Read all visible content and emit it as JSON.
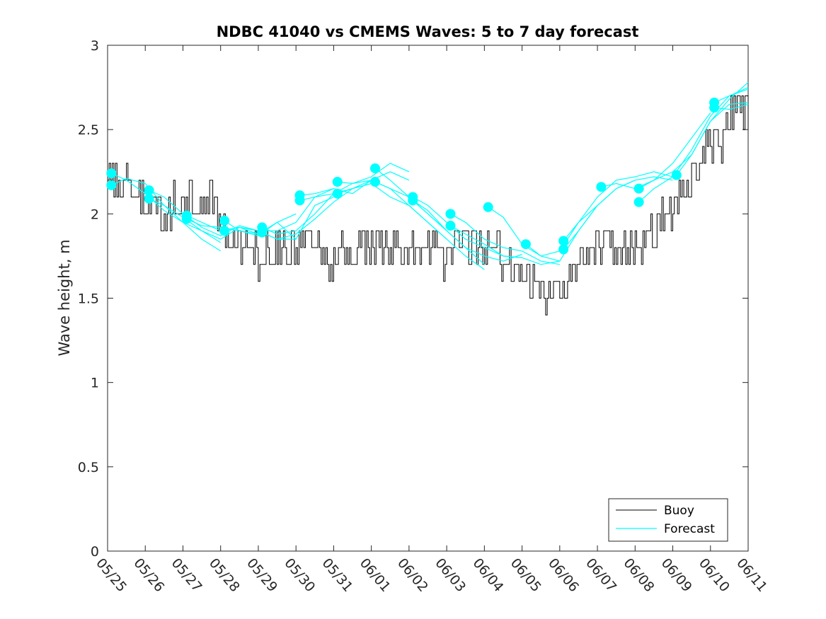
{
  "chart_data": {
    "type": "line",
    "title": "NDBC 41040 vs CMEMS Waves: 5 to 7 day forecast",
    "xlabel": "",
    "ylabel": "Wave height, m",
    "ylim": [
      0,
      3
    ],
    "yticks": [
      "0",
      "0.5",
      "1",
      "1.5",
      "2",
      "2.5",
      "3"
    ],
    "xlim": [
      "05/25",
      "06/11"
    ],
    "xticks": [
      "05/25",
      "05/26",
      "05/27",
      "05/28",
      "05/29",
      "05/30",
      "05/31",
      "06/01",
      "06/02",
      "06/03",
      "06/04",
      "06/05",
      "06/06",
      "06/07",
      "06/08",
      "06/09",
      "06/10",
      "06/11"
    ],
    "grid": false,
    "legend_position": "bottom-right",
    "colors": {
      "buoy": "#000000",
      "forecast": "#00FFFF"
    },
    "series": [
      {
        "name": "Buoy",
        "style": "line",
        "x_days": [
          0,
          0.25,
          0.5,
          0.75,
          1,
          1.25,
          1.5,
          1.75,
          2,
          2.25,
          2.5,
          2.75,
          3,
          3.25,
          3.5,
          3.75,
          4,
          4.25,
          4.5,
          4.75,
          5,
          5.25,
          5.5,
          5.75,
          6,
          6.25,
          6.5,
          6.75,
          7,
          7.25,
          7.5,
          7.75,
          8,
          8.25,
          8.5,
          8.75,
          9,
          9.25,
          9.5,
          9.75,
          10,
          10.25,
          10.5,
          10.75,
          11,
          11.25,
          11.5,
          11.75,
          12,
          12.25,
          12.5,
          12.75,
          13,
          13.25,
          13.5,
          13.75,
          14,
          14.25,
          14.5,
          14.75,
          15,
          15.25,
          15.5,
          15.75,
          16,
          16.25,
          16.5,
          16.75,
          17
        ],
        "values": [
          2.25,
          2.2,
          2.2,
          2.15,
          2.1,
          2.05,
          2.0,
          2.05,
          2.0,
          2.1,
          2.05,
          2.1,
          2.0,
          1.85,
          1.8,
          1.85,
          1.75,
          1.8,
          1.75,
          1.8,
          1.8,
          1.85,
          1.8,
          1.7,
          1.7,
          1.8,
          1.75,
          1.8,
          1.8,
          1.85,
          1.85,
          1.8,
          1.8,
          1.75,
          1.85,
          1.8,
          1.7,
          1.8,
          1.85,
          1.8,
          1.75,
          1.8,
          1.75,
          1.7,
          1.65,
          1.6,
          1.55,
          1.55,
          1.6,
          1.6,
          1.75,
          1.8,
          1.8,
          1.85,
          1.8,
          1.8,
          1.75,
          1.8,
          1.9,
          2.0,
          2.05,
          2.1,
          2.2,
          2.3,
          2.45,
          2.4,
          2.6,
          2.65,
          2.65
        ]
      },
      {
        "name": "Forecast",
        "style": "lines-with-start-markers",
        "runs": [
          {
            "x_days": [
              0.1,
              0.5,
              1.0,
              1.5,
              2.0,
              2.5,
              3.0
            ],
            "values": [
              2.24,
              2.2,
              2.12,
              2.02,
              1.95,
              1.85,
              1.78
            ]
          },
          {
            "x_days": [
              0.1,
              0.5,
              1.0,
              1.5,
              2.0,
              2.5,
              3.0
            ],
            "values": [
              2.17,
              2.21,
              2.18,
              2.05,
              1.98,
              1.9,
              1.83
            ]
          },
          {
            "x_days": [
              1.1,
              1.5,
              2.0,
              2.5,
              3.0,
              3.5,
              4.0
            ],
            "values": [
              2.14,
              2.1,
              2.0,
              1.92,
              1.87,
              1.93,
              1.9
            ]
          },
          {
            "x_days": [
              1.1,
              1.5,
              2.0,
              2.5,
              3.0,
              3.5,
              4.0
            ],
            "values": [
              2.09,
              2.05,
              1.95,
              1.9,
              1.85,
              1.92,
              1.88
            ]
          },
          {
            "x_days": [
              2.1,
              2.5,
              3.0,
              3.5,
              4.0,
              4.5,
              5.0
            ],
            "values": [
              1.99,
              1.95,
              1.9,
              1.92,
              1.9,
              1.85,
              1.85
            ]
          },
          {
            "x_days": [
              2.1,
              2.5,
              3.0,
              3.5,
              4.0,
              4.5,
              5.0
            ],
            "values": [
              1.97,
              1.93,
              1.92,
              1.9,
              1.87,
              1.95,
              2.0
            ]
          },
          {
            "x_days": [
              3.1,
              3.5,
              4.0,
              4.5,
              5.0,
              5.5,
              6.0
            ],
            "values": [
              1.96,
              1.9,
              1.88,
              1.95,
              1.85,
              2.05,
              2.1
            ]
          },
          {
            "x_days": [
              3.1,
              3.5,
              4.0,
              4.5,
              5.0,
              5.5,
              6.0
            ],
            "values": [
              1.9,
              1.92,
              1.9,
              1.9,
              1.95,
              2.1,
              2.15
            ]
          },
          {
            "x_days": [
              4.1,
              4.5,
              5.0,
              5.5,
              6.0,
              6.5,
              7.0
            ],
            "values": [
              1.92,
              1.88,
              1.9,
              2.0,
              2.12,
              2.15,
              2.18
            ]
          },
          {
            "x_days": [
              4.1,
              4.5,
              5.0,
              5.5,
              6.0,
              6.5,
              7.0
            ],
            "values": [
              1.89,
              1.85,
              1.88,
              1.97,
              2.07,
              2.15,
              2.2
            ]
          },
          {
            "x_days": [
              5.1,
              5.5,
              6.0,
              6.5,
              7.0,
              7.5,
              8.0
            ],
            "values": [
              2.11,
              2.12,
              2.15,
              2.12,
              2.2,
              2.25,
              2.2
            ]
          },
          {
            "x_days": [
              5.1,
              5.5,
              6.0,
              6.5,
              7.0,
              7.5,
              8.0
            ],
            "values": [
              2.08,
              2.1,
              2.12,
              2.18,
              2.22,
              2.3,
              2.25
            ]
          },
          {
            "x_days": [
              6.1,
              6.5,
              7.0,
              7.5,
              8.0,
              8.5,
              9.0
            ],
            "values": [
              2.19,
              2.18,
              2.2,
              2.15,
              2.1,
              2.0,
              1.9
            ]
          },
          {
            "x_days": [
              6.1,
              6.5,
              7.0,
              7.5,
              8.0,
              8.5,
              9.0
            ],
            "values": [
              2.12,
              2.15,
              2.18,
              2.1,
              2.05,
              1.95,
              1.85
            ]
          },
          {
            "x_days": [
              7.1,
              7.5,
              8.0,
              8.5,
              9.0,
              9.5,
              10.0
            ],
            "values": [
              2.27,
              2.2,
              2.1,
              2.0,
              1.9,
              1.8,
              1.7
            ]
          },
          {
            "x_days": [
              7.1,
              7.5,
              8.0,
              8.5,
              9.0,
              9.5,
              10.0
            ],
            "values": [
              2.19,
              2.15,
              2.05,
              1.95,
              1.85,
              1.75,
              1.67
            ]
          },
          {
            "x_days": [
              8.1,
              8.5,
              9.0,
              9.5,
              10.0,
              10.5,
              11.0
            ],
            "values": [
              2.1,
              2.05,
              1.95,
              1.85,
              1.8,
              1.75,
              1.74
            ]
          },
          {
            "x_days": [
              8.1,
              8.5,
              9.0,
              9.5,
              10.0,
              10.5,
              11.0
            ],
            "values": [
              2.08,
              2.02,
              1.9,
              1.8,
              1.75,
              1.72,
              1.76
            ]
          },
          {
            "x_days": [
              9.1,
              9.5,
              10.0,
              10.5,
              11.0,
              11.5,
              12.0
            ],
            "values": [
              2.0,
              1.95,
              1.85,
              1.8,
              1.78,
              1.72,
              1.7
            ]
          },
          {
            "x_days": [
              9.1,
              9.5,
              10.0,
              10.5,
              11.0,
              11.5,
              12.0
            ],
            "values": [
              1.93,
              1.88,
              1.82,
              1.75,
              1.74,
              1.7,
              1.72
            ]
          },
          {
            "x_days": [
              10.1,
              10.5,
              11.0,
              11.5,
              12.0,
              12.5,
              13.0
            ],
            "values": [
              2.04,
              1.98,
              1.82,
              1.75,
              1.78,
              1.95,
              2.05
            ]
          },
          {
            "x_days": [
              11.1,
              11.5,
              12.0,
              12.5,
              13.0,
              13.5,
              14.0
            ],
            "values": [
              1.82,
              1.75,
              1.72,
              1.9,
              2.05,
              2.15,
              2.2
            ]
          },
          {
            "x_days": [
              12.1,
              12.5,
              13.0,
              13.5,
              14.0,
              14.5,
              15.0
            ],
            "values": [
              1.84,
              1.95,
              2.1,
              2.2,
              2.22,
              2.25,
              2.22
            ]
          },
          {
            "x_days": [
              12.1,
              12.5,
              13.0,
              13.5,
              14.0,
              14.5,
              15.0
            ],
            "values": [
              1.79,
              1.9,
              2.05,
              2.15,
              2.2,
              2.22,
              2.2
            ]
          },
          {
            "x_days": [
              13.1,
              13.5,
              14.0,
              14.5,
              15.0,
              15.5,
              16.0
            ],
            "values": [
              2.16,
              2.18,
              2.15,
              2.2,
              2.3,
              2.45,
              2.6
            ]
          },
          {
            "x_days": [
              14.1,
              14.5,
              15.0,
              15.5,
              16.0,
              16.5,
              17.0
            ],
            "values": [
              2.15,
              2.2,
              2.25,
              2.35,
              2.55,
              2.68,
              2.78
            ]
          },
          {
            "x_days": [
              14.1,
              14.5,
              15.0,
              15.5,
              16.0,
              16.5,
              17.0
            ],
            "values": [
              2.07,
              2.15,
              2.22,
              2.38,
              2.58,
              2.7,
              2.74
            ]
          },
          {
            "x_days": [
              15.1,
              15.5,
              16.0,
              16.5,
              17.0
            ],
            "values": [
              2.23,
              2.35,
              2.55,
              2.65,
              2.66
            ]
          },
          {
            "x_days": [
              16.1,
              16.5,
              17.0
            ],
            "values": [
              2.66,
              2.7,
              2.75
            ]
          },
          {
            "x_days": [
              16.1,
              16.5,
              17.0
            ],
            "values": [
              2.63,
              2.62,
              2.65
            ]
          }
        ]
      }
    ]
  }
}
